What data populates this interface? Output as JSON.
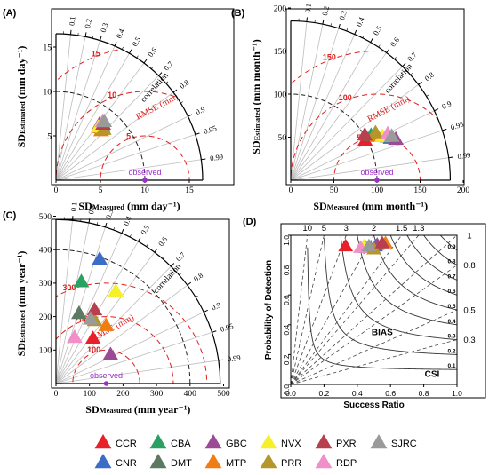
{
  "colors": {
    "rmse": "#e01e1e",
    "observed": "#9b30c9",
    "ref_arc": "#222222",
    "corr_ray": "#bdbdbd",
    "csi_curve": "#333333",
    "bias_line": "#444444"
  },
  "chart_data": [
    {
      "type": "scatter",
      "subtype": "taylor_diagram",
      "panel_label": "(A)",
      "xlabel_main": "SD",
      "xlabel_sub": "Measured",
      "xlabel_unit": " (mm day⁻¹)",
      "ylabel_main": "SD",
      "ylabel_sub": "Estimated",
      "ylabel_unit": " (mm day⁻¹)",
      "sd_ticks": [
        0,
        5,
        10,
        15
      ],
      "sd_tick_labels": [
        "0",
        "5",
        "10",
        "15"
      ],
      "sd_max": 16.5,
      "observed_sd": 10,
      "observed_label": "observed",
      "rmse_levels": [
        5,
        10,
        15
      ],
      "rmse_labels": [
        "5",
        "10",
        "15"
      ],
      "rmse_title": "RMSE (mm)",
      "corr_ticks": [
        0.1,
        0.2,
        0.3,
        0.4,
        0.5,
        0.6,
        0.7,
        0.8,
        0.9,
        0.95,
        0.99
      ],
      "corr_tick_labels": [
        "0.1",
        "0.2",
        "0.3",
        "0.4",
        "0.5",
        "0.6",
        "0.7",
        "0.8",
        "0.9",
        "0.95",
        "0.99"
      ],
      "corr_title": "correlation",
      "ref_arc_sd": 10,
      "points": [
        {
          "product": "CCR",
          "sd": 7.8,
          "corr": 0.64
        },
        {
          "product": "CNR",
          "sd": 8.2,
          "corr": 0.63
        },
        {
          "product": "CBA",
          "sd": 7.9,
          "corr": 0.66
        },
        {
          "product": "DMT",
          "sd": 8.1,
          "corr": 0.65
        },
        {
          "product": "GBC",
          "sd": 8.0,
          "corr": 0.61
        },
        {
          "product": "MTP",
          "sd": 7.6,
          "corr": 0.67
        },
        {
          "product": "NVX",
          "sd": 7.7,
          "corr": 0.62
        },
        {
          "product": "PRR",
          "sd": 7.9,
          "corr": 0.68
        },
        {
          "product": "PXR",
          "sd": 8.3,
          "corr": 0.64
        },
        {
          "product": "RDP",
          "sd": 8.5,
          "corr": 0.62
        },
        {
          "product": "SJRC",
          "sd": 8.6,
          "corr": 0.63
        }
      ]
    },
    {
      "type": "scatter",
      "subtype": "taylor_diagram",
      "panel_label": "(B)",
      "xlabel_main": "SD",
      "xlabel_sub": "Measured",
      "xlabel_unit": " (mm month⁻¹)",
      "ylabel_main": "SD",
      "ylabel_sub": "Estimated",
      "ylabel_unit": " (mm month⁻¹)",
      "sd_ticks": [
        0,
        50,
        100,
        150,
        200
      ],
      "sd_tick_labels": [
        "0",
        "50",
        "100",
        "150",
        "200"
      ],
      "sd_max": 185,
      "observed_sd": 100,
      "observed_label": "observed",
      "rmse_levels": [
        50,
        100,
        150
      ],
      "rmse_labels": [
        "50",
        "100",
        "150"
      ],
      "rmse_title": "RMSE (mm)",
      "corr_ticks": [
        0.1,
        0.2,
        0.3,
        0.4,
        0.5,
        0.6,
        0.7,
        0.8,
        0.9,
        0.95,
        0.99
      ],
      "corr_tick_labels": [
        "0.1",
        "0.2",
        "0.3",
        "0.4",
        "0.5",
        "0.6",
        "0.7",
        "0.8",
        "0.9",
        "0.95",
        "0.99"
      ],
      "corr_title": "correlation",
      "ref_arc_sd": 100,
      "points": [
        {
          "product": "CCR",
          "sd": 98,
          "corr": 0.88
        },
        {
          "product": "CNR",
          "sd": 126,
          "corr": 0.92
        },
        {
          "product": "CBA",
          "sd": 107,
          "corr": 0.87
        },
        {
          "product": "DMT",
          "sd": 123,
          "corr": 0.91
        },
        {
          "product": "GBC",
          "sd": 131,
          "corr": 0.93
        },
        {
          "product": "MTP",
          "sd": 113,
          "corr": 0.89
        },
        {
          "product": "NVX",
          "sd": 118,
          "corr": 0.9
        },
        {
          "product": "PRR",
          "sd": 113,
          "corr": 0.87
        },
        {
          "product": "PXR",
          "sd": 101,
          "corr": 0.85
        },
        {
          "product": "RDP",
          "sd": 125,
          "corr": 0.9
        },
        {
          "product": "SJRC",
          "sd": 128,
          "corr": 0.915
        }
      ]
    },
    {
      "type": "scatter",
      "subtype": "taylor_diagram",
      "panel_label": "(C)",
      "xlabel_main": "SD",
      "xlabel_sub": "Measured",
      "xlabel_unit": " (mm year⁻¹)",
      "ylabel_main": "SD",
      "ylabel_sub": "Estimated",
      "ylabel_unit": " (mm year⁻¹)",
      "sd_ticks": [
        0,
        100,
        200,
        300,
        400,
        500
      ],
      "sd_tick_labels": [
        "0",
        "100",
        "200",
        "300",
        "400",
        "500"
      ],
      "sd_max": 490,
      "observed_sd": 150,
      "observed_label": "observed",
      "rmse_levels": [
        100,
        200,
        300
      ],
      "rmse_labels": [
        "100",
        "200",
        "300"
      ],
      "rmse_title": "RMSE (mm)",
      "corr_ticks": [
        0.1,
        0.2,
        0.3,
        0.4,
        0.5,
        0.6,
        0.7,
        0.8,
        0.9,
        0.95,
        0.99
      ],
      "corr_tick_labels": [
        "0.1",
        "0.2",
        "0.3",
        "0.4",
        "0.5",
        "0.6",
        "0.7",
        "0.8",
        "0.9",
        "0.95",
        "0.99"
      ],
      "corr_title": "correlation",
      "ref_arc_sd": 400,
      "points": [
        {
          "product": "CCR",
          "sd": 175,
          "corr": 0.63
        },
        {
          "product": "CNR",
          "sd": 395,
          "corr": 0.33
        },
        {
          "product": "CBA",
          "sd": 315,
          "corr": 0.24
        },
        {
          "product": "DMT",
          "sd": 222,
          "corr": 0.31
        },
        {
          "product": "GBC",
          "sd": 185,
          "corr": 0.88
        },
        {
          "product": "MTP",
          "sd": 230,
          "corr": 0.65
        },
        {
          "product": "NVX",
          "sd": 330,
          "corr": 0.54
        },
        {
          "product": "PRR",
          "sd": 222,
          "corr": 0.52
        },
        {
          "product": "PXR",
          "sd": 250,
          "corr": 0.46
        },
        {
          "product": "RDP",
          "sd": 150,
          "corr": 0.37
        },
        {
          "product": "SJRC",
          "sd": 220,
          "corr": 0.47
        }
      ]
    },
    {
      "type": "scatter",
      "subtype": "performance_diagram",
      "panel_label": "(D)",
      "xlabel": "Success Ratio",
      "ylabel": "Probability of Detection",
      "xlim": [
        0,
        1
      ],
      "ylim": [
        0,
        1
      ],
      "x_ticks": [
        0,
        0.2,
        0.4,
        0.6,
        0.8,
        1.0
      ],
      "x_tick_labels": [
        "0.0",
        "0.2",
        "0.4",
        "0.6",
        "0.8",
        "1.0"
      ],
      "y_ticks": [
        0,
        0.2,
        0.4,
        0.6,
        0.8,
        1.0
      ],
      "y_tick_labels": [
        "0.0",
        "0.2",
        "0.4",
        "0.6",
        "0.8",
        "1.0"
      ],
      "bias_values": [
        10,
        5,
        3,
        2,
        1.5,
        1.3,
        1,
        0.8,
        0.5,
        0.3
      ],
      "bias_labels": [
        "10",
        "5",
        "3",
        "2",
        "1.5",
        "1.3",
        "1",
        "0.8",
        "0.5",
        "0.3"
      ],
      "bias_title": "BIAS",
      "csi_values": [
        0.1,
        0.2,
        0.3,
        0.4,
        0.5,
        0.6,
        0.7,
        0.8,
        0.9
      ],
      "csi_labels": [
        "0.1",
        "0.2",
        "0.3",
        "0.4",
        "0.5",
        "0.6",
        "0.7",
        "0.8",
        "0.9"
      ],
      "csi_title": "CSI",
      "points": [
        {
          "product": "CCR",
          "x": 0.33,
          "y": 0.93
        },
        {
          "product": "CNR",
          "x": 0.51,
          "y": 0.93
        },
        {
          "product": "CBA",
          "x": 0.45,
          "y": 0.92
        },
        {
          "product": "DMT",
          "x": 0.48,
          "y": 0.92
        },
        {
          "product": "GBC",
          "x": 0.52,
          "y": 0.94
        },
        {
          "product": "MTP",
          "x": 0.57,
          "y": 0.95
        },
        {
          "product": "NVX",
          "x": 0.44,
          "y": 0.93
        },
        {
          "product": "PRR",
          "x": 0.5,
          "y": 0.91
        },
        {
          "product": "PXR",
          "x": 0.55,
          "y": 0.95
        },
        {
          "product": "RDP",
          "x": 0.42,
          "y": 0.92
        },
        {
          "product": "SJRC",
          "x": 0.47,
          "y": 0.93
        }
      ]
    }
  ],
  "legend": [
    {
      "label": "CCR",
      "color": "#e8202a"
    },
    {
      "label": "CNR",
      "color": "#3a6cc8"
    },
    {
      "label": "CBA",
      "color": "#2aa163"
    },
    {
      "label": "DMT",
      "color": "#5c7a62"
    },
    {
      "label": "GBC",
      "color": "#9b4a96"
    },
    {
      "label": "MTP",
      "color": "#f07d14"
    },
    {
      "label": "NVX",
      "color": "#f5f02a"
    },
    {
      "label": "PRR",
      "color": "#b5962a"
    },
    {
      "label": "PXR",
      "color": "#b8404e"
    },
    {
      "label": "RDP",
      "color": "#f08fc8"
    },
    {
      "label": "SJRC",
      "color": "#9a9a9a"
    }
  ]
}
